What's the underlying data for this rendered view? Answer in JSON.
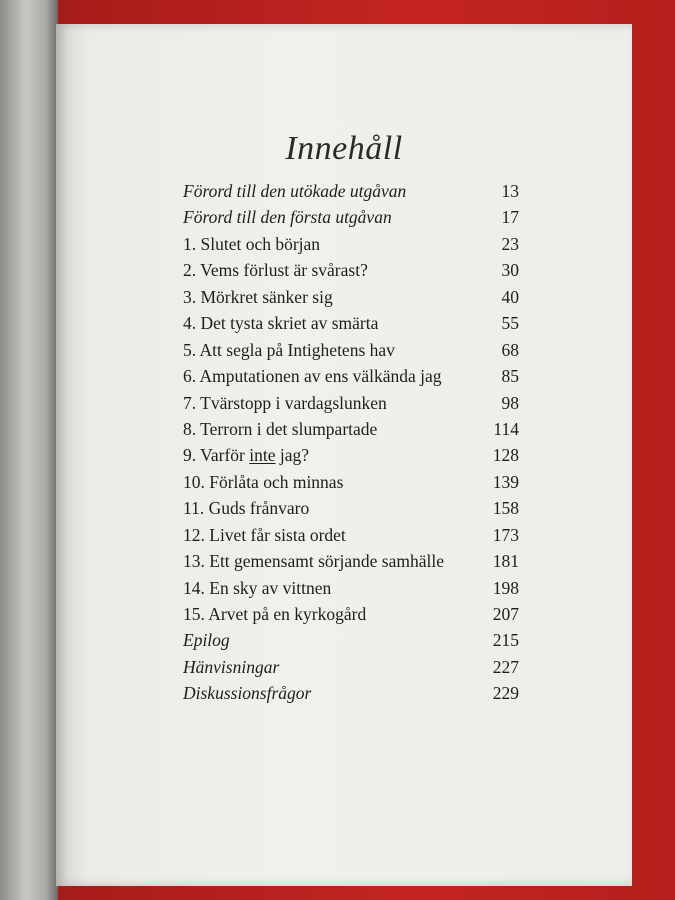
{
  "colors": {
    "background": "#c42420",
    "page": "#f1f0eb",
    "text": "#1e1e1e"
  },
  "toc": {
    "title": "Innehåll",
    "entries": [
      {
        "label": "Förord till den utökade utgåvan",
        "page": "13",
        "italic": true
      },
      {
        "label": "Förord till den första utgåvan",
        "page": "17",
        "italic": true
      },
      {
        "label": "1. Slutet och början",
        "page": "23"
      },
      {
        "label": "2. Vems förlust är svårast?",
        "page": "30"
      },
      {
        "label": "3. Mörkret sänker sig",
        "page": "40"
      },
      {
        "label": "4. Det tysta skriet av smärta",
        "page": "55"
      },
      {
        "label": "5. Att segla på Intighetens hav",
        "page": "68"
      },
      {
        "label": "6. Amputationen av ens välkända jag",
        "page": "85"
      },
      {
        "label": "7. Tvärstopp i vardagslunken",
        "page": "98"
      },
      {
        "label": "8. Terrorn i det slumpartade",
        "page": "114"
      },
      {
        "label_pre": "9. Varför ",
        "label_underlined": "inte",
        "label_post": " jag?",
        "page": "128"
      },
      {
        "label": "10. Förlåta och minnas",
        "page": "139"
      },
      {
        "label": "11. Guds frånvaro",
        "page": "158"
      },
      {
        "label": "12. Livet får sista ordet",
        "page": "173"
      },
      {
        "label": "13. Ett gemensamt sörjande samhälle",
        "page": "181"
      },
      {
        "label": "14. En sky av vittnen",
        "page": "198"
      },
      {
        "label": "15. Arvet på en kyrkogård",
        "page": "207"
      },
      {
        "label": "Epilog",
        "page": "215",
        "italic": true
      },
      {
        "label": "Hänvisningar",
        "page": "227",
        "italic": true
      },
      {
        "label": "Diskussionsfrågor",
        "page": "229",
        "italic": true
      }
    ]
  }
}
